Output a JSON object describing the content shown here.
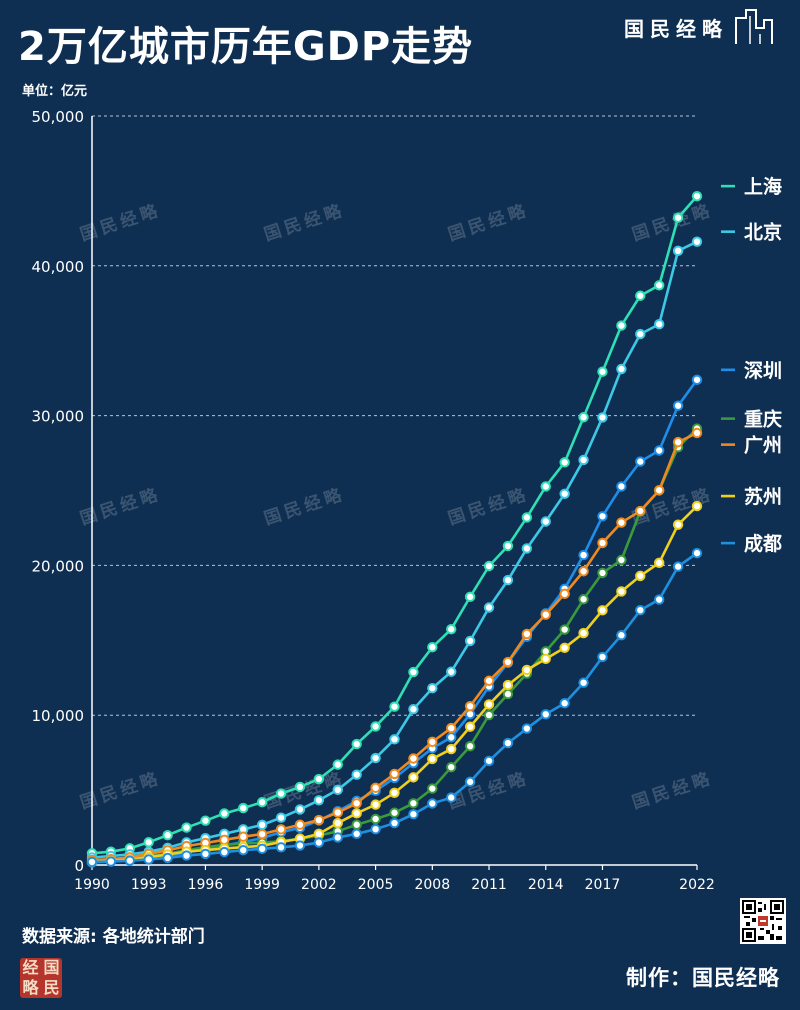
{
  "header": {
    "title": "2万亿城市历年GDP走势",
    "unit": "单位：亿元"
  },
  "brand": {
    "name": "国民经略"
  },
  "watermark": "国民经略",
  "footer": {
    "source": "数据来源: 各地统计部门",
    "credit": "制作：国民经略",
    "seal_chars": [
      "经",
      "国",
      "略",
      "民"
    ]
  },
  "colors": {
    "background": "#0f2f52",
    "grid": "#b8c4d2",
    "marker_fill": "#ffffff"
  },
  "chart_data": {
    "type": "line",
    "title": "2万亿城市历年GDP走势",
    "ylabel": "亿元",
    "ylim": [
      0,
      50000
    ],
    "xlim": [
      1990,
      2022
    ],
    "yticks": [
      0,
      10000,
      20000,
      30000,
      40000,
      50000
    ],
    "ytick_labels": [
      "0",
      "10,000",
      "20,000",
      "30,000",
      "40,000",
      "50,000"
    ],
    "xticks": [
      1990,
      1993,
      1996,
      1999,
      2002,
      2005,
      2008,
      2011,
      2014,
      2017,
      2022
    ],
    "grid": "horizontal-dashed",
    "legend": "right",
    "x": [
      1990,
      1991,
      1992,
      1993,
      1994,
      1995,
      1996,
      1997,
      1998,
      1999,
      2000,
      2001,
      2002,
      2003,
      2004,
      2005,
      2006,
      2007,
      2008,
      2009,
      2010,
      2011,
      2012,
      2013,
      2014,
      2015,
      2016,
      2017,
      2018,
      2019,
      2020,
      2021,
      2022
    ],
    "series": [
      {
        "name": "上海",
        "color": "#2ee0b4",
        "values": [
          780,
          890,
          1110,
          1520,
          1990,
          2500,
          2960,
          3440,
          3800,
          4190,
          4770,
          5210,
          5740,
          6700,
          8070,
          9250,
          10570,
          12880,
          14540,
          15740,
          17900,
          19960,
          21300,
          23200,
          25270,
          26880,
          29890,
          32930,
          36010,
          38000,
          38700,
          43210,
          44650
        ]
      },
      {
        "name": "北京",
        "color": "#3cc9e6",
        "values": [
          500,
          600,
          710,
          890,
          1150,
          1510,
          1790,
          2080,
          2380,
          2680,
          3160,
          3710,
          4320,
          5020,
          6030,
          7140,
          8390,
          10400,
          11800,
          12900,
          14960,
          17190,
          19020,
          21130,
          22930,
          24780,
          27040,
          29880,
          33110,
          35440,
          36100,
          41000,
          41610
        ]
      },
      {
        "name": "深圳",
        "color": "#1e8ee8",
        "values": [
          170,
          240,
          320,
          450,
          630,
          840,
          1050,
          1300,
          1530,
          1800,
          2190,
          2480,
          2970,
          3590,
          4280,
          4950,
          5810,
          6800,
          7790,
          8520,
          10070,
          11920,
          13500,
          15230,
          16800,
          18440,
          20690,
          23280,
          25270,
          26930,
          27670,
          30660,
          32390
        ]
      },
      {
        "name": "重庆",
        "color": "#3a9a3c",
        "values": [
          330,
          380,
          450,
          570,
          760,
          990,
          1180,
          1350,
          1440,
          1490,
          1590,
          1750,
          1970,
          2250,
          2690,
          3070,
          3490,
          4120,
          5100,
          6530,
          7930,
          10010,
          11410,
          12780,
          14260,
          15720,
          17740,
          19500,
          20360,
          23610,
          25000,
          27890,
          29130
        ]
      },
      {
        "name": "广州",
        "color": "#f08a1e",
        "values": [
          320,
          390,
          510,
          740,
          980,
          1260,
          1470,
          1680,
          1890,
          2060,
          2380,
          2690,
          3000,
          3500,
          4120,
          5150,
          6080,
          7110,
          8220,
          9140,
          10600,
          12300,
          13550,
          15420,
          16710,
          18100,
          19610,
          21500,
          22860,
          23630,
          25020,
          28230,
          28840
        ]
      },
      {
        "name": "苏州",
        "color": "#f0d01e",
        "values": [
          200,
          260,
          350,
          530,
          700,
          900,
          1000,
          1100,
          1200,
          1280,
          1540,
          1760,
          2080,
          2800,
          3450,
          4030,
          4820,
          5850,
          7080,
          7740,
          9230,
          10720,
          12010,
          13020,
          13760,
          14500,
          15480,
          17000,
          18260,
          19300,
          20170,
          22720,
          23960
        ]
      },
      {
        "name": "成都",
        "color": "#1e90e0",
        "values": [
          200,
          230,
          290,
          370,
          470,
          630,
          740,
          860,
          990,
          1080,
          1180,
          1300,
          1500,
          1840,
          2080,
          2390,
          2800,
          3390,
          4110,
          4500,
          5550,
          6950,
          8140,
          9110,
          10060,
          10800,
          12170,
          13890,
          15340,
          17010,
          17720,
          19920,
          20820
        ]
      }
    ]
  }
}
